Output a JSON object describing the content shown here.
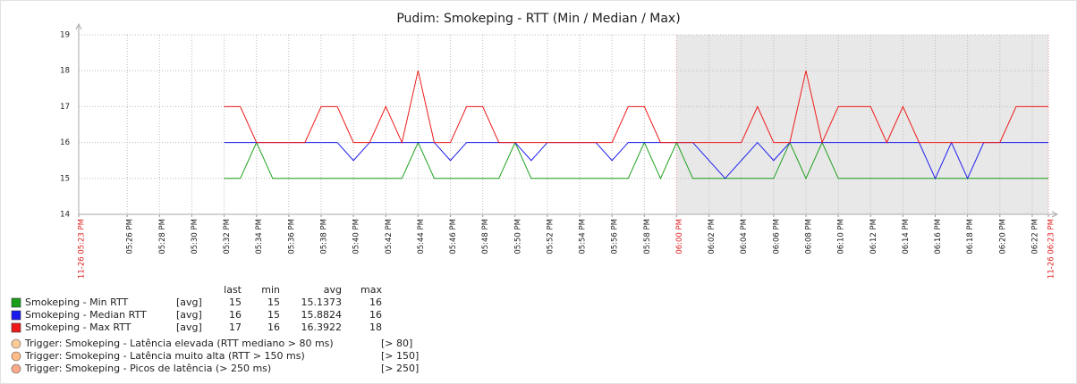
{
  "chart_data": {
    "type": "line",
    "title": "Pudim: Smokeping - RTT (Min / Median / Max)",
    "xlim": [
      "11-26 05:23 PM",
      "11-26 06:23 PM"
    ],
    "xticks": [
      "11-26 05:23 PM",
      "05:26 PM",
      "05:28 PM",
      "05:30 PM",
      "05:32 PM",
      "05:34 PM",
      "05:36 PM",
      "05:38 PM",
      "05:40 PM",
      "05:42 PM",
      "05:44 PM",
      "05:46 PM",
      "05:48 PM",
      "05:50 PM",
      "05:52 PM",
      "05:54 PM",
      "05:56 PM",
      "05:58 PM",
      "06:00 PM",
      "06:02 PM",
      "06:04 PM",
      "06:06 PM",
      "06:08 PM",
      "06:10 PM",
      "06:12 PM",
      "06:14 PM",
      "06:16 PM",
      "06:18 PM",
      "06:20 PM",
      "06:22 PM",
      "11-26 06:23 PM"
    ],
    "ylim": [
      14,
      19
    ],
    "yticks": [
      14,
      15,
      16,
      17,
      18,
      19
    ],
    "grid": true,
    "x": [
      "05:32 PM",
      "05:33 PM",
      "05:34 PM",
      "05:35 PM",
      "05:36 PM",
      "05:37 PM",
      "05:38 PM",
      "05:39 PM",
      "05:40 PM",
      "05:41 PM",
      "05:42 PM",
      "05:43 PM",
      "05:44 PM",
      "05:45 PM",
      "05:46 PM",
      "05:47 PM",
      "05:48 PM",
      "05:49 PM",
      "05:50 PM",
      "05:51 PM",
      "05:52 PM",
      "05:53 PM",
      "05:54 PM",
      "05:55 PM",
      "05:56 PM",
      "05:57 PM",
      "05:58 PM",
      "05:59 PM",
      "06:00 PM",
      "06:01 PM",
      "06:02 PM",
      "06:03 PM",
      "06:04 PM",
      "06:05 PM",
      "06:06 PM",
      "06:07 PM",
      "06:08 PM",
      "06:09 PM",
      "06:10 PM",
      "06:11 PM",
      "06:12 PM",
      "06:13 PM",
      "06:14 PM",
      "06:15 PM",
      "06:16 PM",
      "06:17 PM",
      "06:18 PM",
      "06:19 PM",
      "06:20 PM",
      "06:21 PM",
      "06:22 PM",
      "06:23 PM"
    ],
    "legend_columns": [
      "last",
      "min",
      "avg",
      "max"
    ],
    "series": [
      {
        "name": "Smokeping - Min RTT",
        "color": "#1a9e1a",
        "function": "[avg]",
        "last": 15,
        "min": 15,
        "avg": 15.1373,
        "max": 16,
        "values": [
          15,
          15,
          16,
          15,
          15,
          15,
          15,
          15,
          15,
          15,
          15,
          15,
          16,
          15,
          15,
          15,
          15,
          15,
          16,
          15,
          15,
          15,
          15,
          15,
          15,
          15,
          16,
          15,
          16,
          15,
          15,
          15,
          15,
          15,
          15,
          16,
          15,
          16,
          15,
          15,
          15,
          15,
          15,
          15,
          15,
          15,
          15,
          15,
          15,
          15,
          15,
          15
        ]
      },
      {
        "name": "Smokeping - Median RTT",
        "color": "#1a1aee",
        "function": "[avg]",
        "last": 16,
        "min": 15,
        "avg": 15.8824,
        "max": 16,
        "values": [
          16,
          16,
          16,
          16,
          16,
          16,
          16,
          16,
          15.5,
          16,
          16,
          16,
          16,
          16,
          15.5,
          16,
          16,
          16,
          16,
          15.5,
          16,
          16,
          16,
          16,
          15.5,
          16,
          16,
          16,
          16,
          16,
          15.5,
          15,
          15.5,
          16,
          15.5,
          16,
          16,
          16,
          16,
          16,
          16,
          16,
          16,
          16,
          15,
          16,
          15,
          16,
          16,
          16,
          16,
          16
        ]
      },
      {
        "name": "Smokeping - Max RTT",
        "color": "#ee1a1a",
        "function": "[avg]",
        "last": 17,
        "min": 16,
        "avg": 16.3922,
        "max": 18,
        "values": [
          17,
          17,
          16,
          16,
          16,
          16,
          17,
          17,
          16,
          16,
          17,
          16,
          18,
          16,
          16,
          17,
          17,
          16,
          16,
          16,
          16,
          16,
          16,
          16,
          16,
          17,
          17,
          16,
          16,
          16,
          16,
          16,
          16,
          17,
          16,
          16,
          18,
          16,
          17,
          17,
          17,
          16,
          17,
          16,
          16,
          16,
          16,
          16,
          16,
          17,
          17,
          17
        ]
      }
    ],
    "triggers": [
      {
        "name": "Trigger: Smokeping - Latência elevada (RTT mediano > 80 ms)",
        "threshold": "[> 80]",
        "color": "#ffcc99"
      },
      {
        "name": "Trigger: Smokeping - Latência muito alta (RTT > 150 ms)",
        "threshold": "[> 150]",
        "color": "#ffbb88"
      },
      {
        "name": "Trigger: Smokeping - Picos de latência (> 250 ms)",
        "threshold": "[> 250]",
        "color": "#ffaa88"
      }
    ]
  }
}
